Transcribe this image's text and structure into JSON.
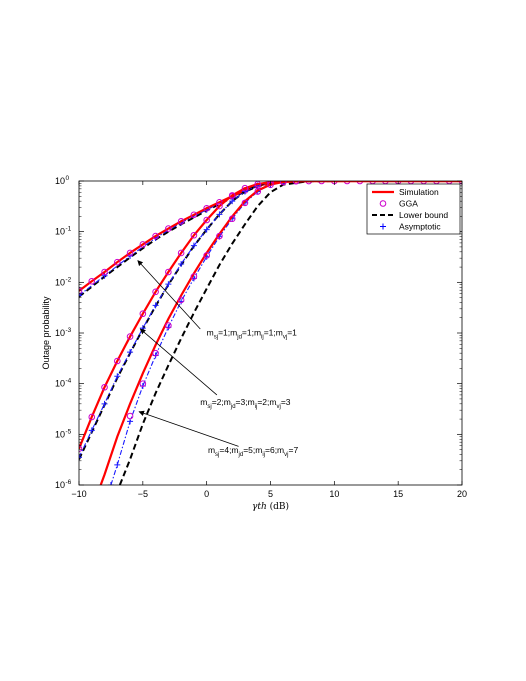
{
  "chart_data": {
    "type": "line",
    "title": "",
    "xlabel_symbol": "γth",
    "xlabel_unit": "(dB)",
    "ylabel": "Outage probability",
    "xlim": [
      -10,
      20
    ],
    "ylim": [
      1e-06,
      1
    ],
    "yscale": "log",
    "grid": false,
    "legend_position": "top-right",
    "xticks": [
      -10,
      -5,
      0,
      5,
      10,
      15,
      20
    ],
    "yticks": [
      {
        "value": 1,
        "base": "10",
        "exp": "0"
      },
      {
        "value": 0.1,
        "base": "10",
        "exp": "-1"
      },
      {
        "value": 0.01,
        "base": "10",
        "exp": "-2"
      },
      {
        "value": 0.001,
        "base": "10",
        "exp": "-3"
      },
      {
        "value": 0.0001,
        "base": "10",
        "exp": "-4"
      },
      {
        "value": 1e-05,
        "base": "10",
        "exp": "-5"
      },
      {
        "value": 1e-06,
        "base": "10",
        "exp": "-6"
      }
    ],
    "legend": [
      {
        "label": "Simulation",
        "style": "solid",
        "color": "#ff0000"
      },
      {
        "label": "GGA",
        "style": "circle",
        "color": "#cc00cc"
      },
      {
        "label": "Lower bound",
        "style": "dashed",
        "color": "#000000"
      },
      {
        "label": "Asymptotic",
        "style": "plus-dashdot",
        "color": "#0000ff"
      }
    ],
    "series": [
      {
        "case": 1,
        "simulation": {
          "x": [
            -10,
            -9,
            -8,
            -7,
            -6,
            -5,
            -4,
            -3,
            -2,
            -1,
            0,
            1,
            2,
            3,
            4,
            5,
            6,
            8,
            10,
            15,
            20
          ],
          "y": [
            0.0068,
            0.0105,
            0.016,
            0.025,
            0.038,
            0.056,
            0.082,
            0.115,
            0.16,
            0.215,
            0.29,
            0.38,
            0.5,
            0.65,
            0.8,
            0.92,
            0.975,
            0.999,
            1,
            1,
            1
          ]
        },
        "gga": {
          "x": [
            -10,
            -9,
            -8,
            -7,
            -6,
            -5,
            -4,
            -3,
            -2,
            -1,
            0,
            1,
            2,
            3,
            4,
            5,
            6,
            7,
            8,
            9,
            10,
            11,
            12,
            13,
            14,
            15,
            16,
            17,
            18,
            19,
            20
          ],
          "y": [
            0.0068,
            0.0105,
            0.016,
            0.025,
            0.038,
            0.056,
            0.082,
            0.115,
            0.16,
            0.215,
            0.29,
            0.38,
            0.5,
            0.65,
            0.8,
            0.92,
            0.975,
            0.995,
            0.999,
            1,
            1,
            1,
            1,
            1,
            1,
            1,
            1,
            1,
            1,
            1,
            1
          ]
        },
        "lower_bound": {
          "x": [
            -10,
            -9,
            -8,
            -7,
            -6,
            -5,
            -4,
            -3,
            -2,
            -1,
            0,
            1,
            2,
            3,
            4,
            5,
            6,
            8,
            10,
            15,
            20
          ],
          "y": [
            0.0052,
            0.0082,
            0.013,
            0.02,
            0.031,
            0.047,
            0.07,
            0.1,
            0.14,
            0.19,
            0.26,
            0.35,
            0.47,
            0.62,
            0.78,
            0.91,
            0.97,
            0.999,
            1,
            1,
            1
          ]
        },
        "asymptotic": {
          "x": [
            -10,
            -8,
            -6,
            -4,
            -2,
            0,
            2,
            4,
            6,
            8,
            10,
            15,
            20
          ],
          "y": [
            0.0055,
            0.0135,
            0.033,
            0.075,
            0.15,
            0.27,
            0.48,
            0.79,
            0.97,
            0.999,
            1,
            1,
            1
          ]
        }
      },
      {
        "case": 2,
        "simulation": {
          "x": [
            -10,
            -9,
            -8,
            -7,
            -6,
            -5,
            -4,
            -3,
            -2,
            -1,
            0,
            1,
            2,
            3,
            4,
            5,
            6,
            8,
            10,
            15,
            20
          ],
          "y": [
            5.2e-06,
            2.2e-05,
            8.5e-05,
            0.00028,
            0.00085,
            0.0024,
            0.0065,
            0.016,
            0.038,
            0.085,
            0.17,
            0.32,
            0.52,
            0.72,
            0.87,
            0.95,
            0.985,
            0.999,
            1,
            1,
            1
          ]
        },
        "gga": {
          "x": [
            -10,
            -9,
            -8,
            -7,
            -6,
            -5,
            -4,
            -3,
            -2,
            -1,
            0,
            1,
            2,
            3,
            4,
            5,
            6,
            7
          ],
          "y": [
            5.2e-06,
            2.2e-05,
            8.5e-05,
            0.00028,
            0.00085,
            0.0024,
            0.0065,
            0.016,
            0.038,
            0.085,
            0.17,
            0.32,
            0.52,
            0.72,
            0.87,
            0.95,
            0.985,
            0.996
          ]
        },
        "lower_bound": {
          "x": [
            -10,
            -9,
            -8,
            -7,
            -6,
            -5,
            -4,
            -3,
            -2,
            -1,
            0,
            1,
            2,
            3,
            4,
            5,
            6,
            8,
            10,
            15,
            20
          ],
          "y": [
            3.2e-06,
            1.1e-05,
            3.8e-05,
            0.00013,
            0.0004,
            0.0012,
            0.0034,
            0.009,
            0.022,
            0.052,
            0.11,
            0.22,
            0.4,
            0.62,
            0.82,
            0.94,
            0.985,
            0.999,
            1,
            1,
            1
          ]
        },
        "asymptotic": {
          "x": [
            -10,
            -9,
            -8,
            -7,
            -6,
            -5,
            -4,
            -3,
            -2,
            -1,
            0,
            1,
            2,
            3,
            4,
            5,
            6,
            8,
            10,
            15,
            20
          ],
          "y": [
            3.5e-06,
            1.2e-05,
            4e-05,
            0.00014,
            0.00042,
            0.00125,
            0.0035,
            0.0092,
            0.023,
            0.053,
            0.11,
            0.22,
            0.4,
            0.62,
            0.82,
            0.94,
            0.985,
            0.999,
            1,
            1,
            1
          ]
        }
      },
      {
        "case": 3,
        "simulation": {
          "x": [
            -8.3,
            -8,
            -7,
            -6,
            -5,
            -4,
            -3,
            -2,
            -1,
            0,
            1,
            2,
            3,
            4,
            5,
            6,
            8,
            10,
            15,
            20
          ],
          "y": [
            1e-06,
            1.6e-06,
            9e-06,
            4e-05,
            0.00016,
            0.00058,
            0.0019,
            0.0055,
            0.015,
            0.038,
            0.09,
            0.2,
            0.4,
            0.65,
            0.85,
            0.96,
            0.999,
            1,
            1,
            1
          ]
        },
        "gga": {
          "x": [
            -6,
            -5,
            -4,
            -3,
            -2,
            -1,
            0,
            1,
            2,
            3,
            4,
            5,
            6,
            7
          ],
          "y": [
            2.3e-05,
            0.0001,
            0.0004,
            0.0014,
            0.0045,
            0.013,
            0.034,
            0.082,
            0.18,
            0.37,
            0.62,
            0.84,
            0.955,
            0.992
          ]
        },
        "lower_bound": {
          "x": [
            -6.8,
            -6,
            -5,
            -4,
            -3,
            -2,
            -1,
            0,
            1,
            2,
            3,
            4,
            5,
            6,
            8,
            10,
            15,
            20
          ],
          "y": [
            1e-06,
            3.2e-06,
            1.6e-05,
            6.5e-05,
            0.00023,
            0.00078,
            0.0025,
            0.0075,
            0.022,
            0.058,
            0.14,
            0.32,
            0.6,
            0.85,
            0.99,
            1,
            1,
            1
          ]
        },
        "asymptotic": {
          "x": [
            -7.5,
            -7,
            -6,
            -5,
            -4,
            -3,
            -2,
            -1,
            0,
            1,
            2,
            3,
            4,
            5,
            6,
            8,
            10,
            15,
            20
          ],
          "y": [
            1e-06,
            2.5e-06,
            1.8e-05,
            9e-05,
            0.00036,
            0.0013,
            0.0042,
            0.012,
            0.032,
            0.08,
            0.18,
            0.37,
            0.62,
            0.85,
            0.96,
            0.999,
            1,
            1,
            1
          ]
        }
      }
    ],
    "annotations": [
      {
        "parts": [
          {
            "t": "m"
          },
          {
            "t": "sj",
            "sub": true
          },
          {
            "t": "=1;m"
          },
          {
            "t": "jd",
            "sub": true
          },
          {
            "t": "=1;m"
          },
          {
            "t": "ij",
            "sub": true
          },
          {
            "t": "=1;m"
          },
          {
            "t": "vj",
            "sub": true
          },
          {
            "t": "=1"
          }
        ],
        "anchor": {
          "x": 0,
          "y": 0.0009
        },
        "arrow_from": {
          "x": -0.5,
          "y": 0.0012
        },
        "arrow_to": {
          "x": -5.4,
          "y": 0.027
        }
      },
      {
        "parts": [
          {
            "t": "m"
          },
          {
            "t": "sj",
            "sub": true
          },
          {
            "t": "=2;m"
          },
          {
            "t": "jd",
            "sub": true
          },
          {
            "t": "=3;m"
          },
          {
            "t": "ij",
            "sub": true
          },
          {
            "t": "=2;m"
          },
          {
            "t": "vj",
            "sub": true
          },
          {
            "t": "=3"
          }
        ],
        "anchor": {
          "x": -0.5,
          "y": 3.8e-05
        },
        "arrow_from": {
          "x": 0.8,
          "y": 6e-05
        },
        "arrow_to": {
          "x": -5.2,
          "y": 0.0012
        }
      },
      {
        "parts": [
          {
            "t": "m"
          },
          {
            "t": "sj",
            "sub": true
          },
          {
            "t": "=4;m"
          },
          {
            "t": "jd",
            "sub": true
          },
          {
            "t": "=5;m"
          },
          {
            "t": "ij",
            "sub": true
          },
          {
            "t": "=6;m"
          },
          {
            "t": "vj",
            "sub": true
          },
          {
            "t": "=7"
          }
        ],
        "anchor": {
          "x": 0.1,
          "y": 4.3e-06
        },
        "arrow_from": {
          "x": 2.5,
          "y": 5.8e-06
        },
        "arrow_to": {
          "x": -5.3,
          "y": 2.8e-05
        }
      }
    ]
  }
}
